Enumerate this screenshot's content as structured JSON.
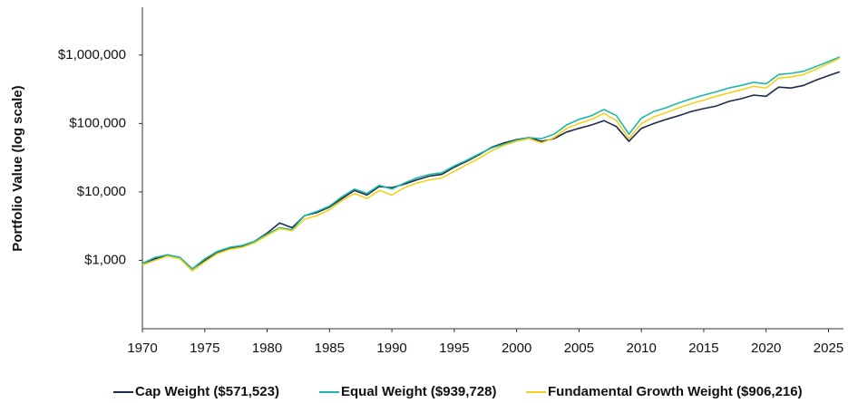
{
  "chart_data": {
    "type": "line",
    "y_label": "Portfolio Value (log scale)",
    "log_scale": true,
    "grid": false,
    "legend": "bottom",
    "xlim": [
      1970,
      2026.2
    ],
    "xticks": [
      1970,
      1975,
      1980,
      1985,
      1990,
      1995,
      2000,
      2005,
      2010,
      2015,
      2020,
      2025
    ],
    "ylim": [
      100,
      5000000
    ],
    "yticks": [
      {
        "value": 1000,
        "label": "$1,000"
      },
      {
        "value": 10000,
        "label": "$10,000"
      },
      {
        "value": 100000,
        "label": "$100,000"
      },
      {
        "value": 1000000,
        "label": "$1,000,000"
      }
    ],
    "x": [
      1970,
      1971,
      1972,
      1973,
      1974,
      1975,
      1976,
      1977,
      1978,
      1979,
      1980,
      1981,
      1982,
      1983,
      1984,
      1985,
      1986,
      1987,
      1988,
      1989,
      1990,
      1991,
      1992,
      1993,
      1994,
      1995,
      1996,
      1997,
      1998,
      1999,
      2000,
      2001,
      2002,
      2003,
      2004,
      2005,
      2006,
      2007,
      2008,
      2009,
      2010,
      2011,
      2012,
      2013,
      2014,
      2015,
      2016,
      2017,
      2018,
      2019,
      2020,
      2021,
      2022,
      2023,
      2024,
      2025,
      2025.9
    ],
    "series": [
      {
        "name": "Cap Weight ($571,523)",
        "color": "#1c2b4a",
        "values": [
          900,
          1050,
          1200,
          1100,
          750,
          1000,
          1300,
          1500,
          1600,
          1900,
          2500,
          3500,
          3000,
          4500,
          5000,
          6000,
          8000,
          10500,
          9000,
          12000,
          11500,
          13000,
          15000,
          17000,
          18000,
          23000,
          28000,
          35000,
          45000,
          52000,
          58000,
          62000,
          55000,
          60000,
          75000,
          85000,
          95000,
          110000,
          90000,
          55000,
          85000,
          100000,
          115000,
          130000,
          150000,
          165000,
          180000,
          210000,
          230000,
          260000,
          250000,
          340000,
          330000,
          360000,
          430000,
          500000,
          571523
        ]
      },
      {
        "name": "Equal Weight ($939,728)",
        "color": "#1fb8a6",
        "values": [
          900,
          1100,
          1200,
          1100,
          750,
          1050,
          1350,
          1550,
          1650,
          1900,
          2400,
          3000,
          2800,
          4500,
          5200,
          6200,
          8500,
          11000,
          9500,
          12500,
          11000,
          13500,
          16000,
          18000,
          19000,
          24000,
          29000,
          36000,
          44000,
          50000,
          57000,
          62000,
          60000,
          70000,
          95000,
          115000,
          130000,
          160000,
          130000,
          70000,
          120000,
          150000,
          170000,
          200000,
          230000,
          260000,
          290000,
          330000,
          360000,
          400000,
          380000,
          520000,
          540000,
          580000,
          680000,
          800000,
          939728
        ]
      },
      {
        "name": "Fundamental Growth Weight ($906,216)",
        "color": "#f2d21c",
        "values": [
          850,
          1000,
          1150,
          1050,
          700,
          950,
          1250,
          1450,
          1550,
          1800,
          2300,
          2900,
          2700,
          4000,
          4500,
          5500,
          7500,
          9500,
          8000,
          10500,
          9000,
          11500,
          13500,
          15000,
          16000,
          20000,
          25000,
          31000,
          40000,
          48000,
          55000,
          60000,
          52000,
          62000,
          85000,
          100000,
          115000,
          140000,
          110000,
          60000,
          100000,
          125000,
          145000,
          170000,
          195000,
          220000,
          250000,
          280000,
          310000,
          350000,
          330000,
          460000,
          480000,
          520000,
          620000,
          750000,
          906216
        ]
      }
    ]
  }
}
